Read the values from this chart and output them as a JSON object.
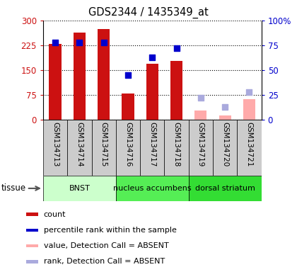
{
  "title": "GDS2344 / 1435349_at",
  "samples": [
    "GSM134713",
    "GSM134714",
    "GSM134715",
    "GSM134716",
    "GSM134717",
    "GSM134718",
    "GSM134719",
    "GSM134720",
    "GSM134721"
  ],
  "count_values": [
    228,
    263,
    273,
    80,
    168,
    178,
    null,
    null,
    null
  ],
  "count_absent": [
    null,
    null,
    null,
    null,
    null,
    null,
    28,
    13,
    63
  ],
  "rank_values": [
    78,
    78,
    78,
    45,
    63,
    72,
    null,
    null,
    null
  ],
  "rank_absent_dot": [
    null,
    null,
    null,
    null,
    null,
    null,
    22,
    13,
    28
  ],
  "ylim_left": [
    0,
    300
  ],
  "ylim_right": [
    0,
    100
  ],
  "yticks_left": [
    0,
    75,
    150,
    225,
    300
  ],
  "yticks_right": [
    0,
    25,
    50,
    75,
    100
  ],
  "ytick_labels_left": [
    "0",
    "75",
    "150",
    "225",
    "300"
  ],
  "ytick_labels_right": [
    "0",
    "25",
    "50",
    "75",
    "100%"
  ],
  "bar_color_present": "#cc1111",
  "bar_color_absent": "#ffaaaa",
  "dot_color_present": "#0000cc",
  "dot_color_absent": "#aaaadd",
  "tissue_groups": [
    {
      "label": "BNST",
      "start": 0,
      "end": 3,
      "color": "#ccffcc"
    },
    {
      "label": "nucleus accumbens",
      "start": 3,
      "end": 6,
      "color": "#55ee55"
    },
    {
      "label": "dorsal striatum",
      "start": 6,
      "end": 9,
      "color": "#33dd33"
    }
  ],
  "legend_items": [
    {
      "label": "count",
      "color": "#cc1111"
    },
    {
      "label": "percentile rank within the sample",
      "color": "#0000cc"
    },
    {
      "label": "value, Detection Call = ABSENT",
      "color": "#ffaaaa"
    },
    {
      "label": "rank, Detection Call = ABSENT",
      "color": "#aaaadd"
    }
  ],
  "bar_width": 0.5,
  "dot_size": 40,
  "sample_box_color": "#cccccc",
  "chart_bg": "#ffffff"
}
